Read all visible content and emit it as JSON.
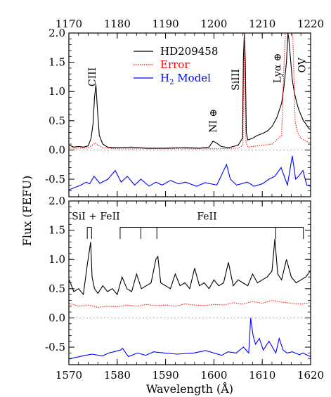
{
  "chart_data": [
    {
      "type": "line",
      "panel": "top",
      "xlabel_top_ticks": [
        "1170",
        "1180",
        "1190",
        "1200",
        "1210",
        "1220"
      ],
      "xlim": [
        1170,
        1220
      ],
      "ylim": [
        -0.8,
        2.0
      ],
      "yticks": [
        {
          "value": 0.0,
          "label": "0.0"
        },
        {
          "value": 0.5,
          "label": "0.5"
        },
        {
          "value": 1.0,
          "label": "1.0"
        },
        {
          "value": 1.5,
          "label": "1.5"
        },
        {
          "value": 2.0,
          "label": "2.0"
        },
        {
          "value": -0.5,
          "label": "-0.5"
        }
      ],
      "legend": {
        "placement": "top-center",
        "entries": [
          {
            "label": "HD209458",
            "color": "#000000",
            "style": "solid"
          },
          {
            "label": "Error",
            "color": "#ff0000",
            "style": "dotted"
          },
          {
            "label_main": "H",
            "label_sub": "2",
            "label_rest": " Model",
            "color": "#0000ff",
            "style": "solid"
          }
        ]
      },
      "annotations": [
        {
          "text": "CIII",
          "x": 1175.5,
          "y": 1.25,
          "rotate": true
        },
        {
          "text": "NI ⊕",
          "x": 1200.5,
          "y": 0.5,
          "rotate": true
        },
        {
          "text": "SiIII",
          "x": 1205.2,
          "y": 1.2,
          "rotate": true
        },
        {
          "text": "Lyα ⊕",
          "x": 1213.8,
          "y": 1.4,
          "rotate": true
        },
        {
          "text": "OV",
          "x": 1218.9,
          "y": 1.45,
          "rotate": true
        }
      ],
      "series": [
        {
          "name": "HD209458",
          "color": "#000000",
          "x": [
            1170.1,
            1171,
            1172,
            1173,
            1174,
            1174.6,
            1175,
            1175.3,
            1175.6,
            1175.9,
            1176.3,
            1177,
            1178,
            1180,
            1183,
            1186,
            1190,
            1194,
            1197,
            1199,
            1199.8,
            1200.5,
            1201.5,
            1203,
            1205,
            1205.9,
            1206.1,
            1206.3,
            1206.5,
            1206.7,
            1207,
            1208,
            1209,
            1210,
            1211,
            1212,
            1213,
            1214,
            1214.5,
            1215,
            1215.3,
            1215.5,
            1215.8,
            1216.2,
            1216.6,
            1217,
            1217.5,
            1218,
            1218.5,
            1219,
            1219.5,
            1219.9
          ],
          "y": [
            0.08,
            0.05,
            0.06,
            0.05,
            0.07,
            0.2,
            0.45,
            0.9,
            1.12,
            0.7,
            0.25,
            0.1,
            0.05,
            0.04,
            0.05,
            0.03,
            0.03,
            0.04,
            0.03,
            0.05,
            0.15,
            0.12,
            0.06,
            0.04,
            0.08,
            0.2,
            1.6,
            2.0,
            1.5,
            0.3,
            0.17,
            0.2,
            0.25,
            0.28,
            0.32,
            0.4,
            0.55,
            0.8,
            1.1,
            1.5,
            2.0,
            1.9,
            1.6,
            1.2,
            1.0,
            0.85,
            0.7,
            0.6,
            0.5,
            0.45,
            0.38,
            0.35
          ]
        },
        {
          "name": "Error",
          "color": "#ff0000",
          "x": [
            1170.1,
            1172,
            1174,
            1175,
            1175.5,
            1176,
            1177,
            1180,
            1190,
            1200,
            1205,
            1206,
            1206.3,
            1206.6,
            1207,
            1210,
            1212,
            1214,
            1214.5,
            1214.8,
            1215.5,
            1216.3,
            1216.8,
            1217.3,
            1218,
            1219,
            1219.9
          ],
          "y": [
            0.03,
            0.03,
            0.04,
            0.09,
            0.12,
            0.08,
            0.04,
            0.02,
            0.02,
            0.02,
            0.03,
            0.08,
            2.0,
            0.15,
            0.05,
            0.08,
            0.1,
            0.25,
            1.5,
            2.0,
            2.0,
            2.0,
            0.5,
            0.3,
            0.2,
            0.15,
            0.12
          ]
        },
        {
          "name": "H2 Model",
          "color": "#0000ff",
          "x": [
            1170.1,
            1172.5,
            1173.6,
            1174.3,
            1175.2,
            1176.4,
            1178.1,
            1179.6,
            1180.8,
            1182.1,
            1183.6,
            1184.9,
            1186.6,
            1188.0,
            1189.3,
            1191.0,
            1192.7,
            1194.1,
            1196.4,
            1198.2,
            1200.6,
            1202.6,
            1203.4,
            1204.7,
            1206.9,
            1208.3,
            1210.0,
            1211.4,
            1212.6,
            1213.9,
            1215.2,
            1216.2,
            1216.9,
            1217.5,
            1218.4,
            1219.2,
            1219.9
          ],
          "y": [
            -0.68,
            -0.6,
            -0.55,
            -0.58,
            -0.45,
            -0.57,
            -0.5,
            -0.35,
            -0.55,
            -0.45,
            -0.6,
            -0.5,
            -0.62,
            -0.55,
            -0.6,
            -0.52,
            -0.58,
            -0.55,
            -0.62,
            -0.56,
            -0.6,
            -0.25,
            -0.5,
            -0.6,
            -0.55,
            -0.62,
            -0.58,
            -0.5,
            -0.45,
            -0.3,
            -0.6,
            -0.1,
            -0.5,
            -0.45,
            -0.35,
            -0.6,
            -0.62
          ]
        }
      ]
    },
    {
      "type": "line",
      "panel": "bottom",
      "xlabel": "Wavelength (Å)",
      "xticks": [
        "1570",
        "1580",
        "1590",
        "1600",
        "1610",
        "1620"
      ],
      "xlim": [
        1570,
        1620
      ],
      "ylim": [
        -0.8,
        2.0
      ],
      "yticks": [
        {
          "value": 0.0,
          "label": "0.0"
        },
        {
          "value": 0.5,
          "label": "0.5"
        },
        {
          "value": 1.0,
          "label": "1.0"
        },
        {
          "value": 1.5,
          "label": "1.5"
        },
        {
          "value": 2.0,
          "label": "2.0"
        },
        {
          "value": -0.5,
          "label": "-0.5"
        }
      ],
      "annotations": [
        {
          "text": "SiI + FeII",
          "x": 1570.6,
          "y": 1.68
        },
        {
          "text": "FeII",
          "x": 1596.5,
          "y": 1.68
        }
      ],
      "line_markers": [
        {
          "group": "SiI + FeII",
          "x": [
            1573.8,
            1574.7
          ],
          "y_top": 1.55,
          "y_bottom": 1.35
        },
        {
          "group": "FeII",
          "x": [
            1580.6,
            1584.9,
            1588.2,
            1612.8,
            1618.5
          ],
          "y_top": 1.55,
          "y_bottom": 1.35
        }
      ],
      "series": [
        {
          "name": "HD209458",
          "color": "#000000",
          "x": [
            1570.1,
            1571,
            1572,
            1573,
            1573.8,
            1574.5,
            1574.8,
            1575.3,
            1576,
            1577,
            1578,
            1579,
            1580,
            1581,
            1582,
            1583,
            1584,
            1585,
            1586,
            1587,
            1588,
            1588.4,
            1589,
            1590,
            1591,
            1592,
            1593,
            1594,
            1595,
            1596,
            1597,
            1598,
            1599,
            1600,
            1601,
            1602,
            1603,
            1604,
            1605,
            1606,
            1607,
            1608,
            1609,
            1610,
            1611,
            1612,
            1612.6,
            1613.2,
            1614,
            1615,
            1616,
            1617,
            1618,
            1619,
            1619.9
          ],
          "y": [
            0.65,
            0.45,
            0.5,
            0.4,
            0.9,
            1.3,
            0.7,
            0.5,
            0.42,
            0.55,
            0.45,
            0.5,
            0.4,
            0.7,
            0.5,
            0.45,
            0.75,
            0.5,
            0.55,
            0.6,
            1.0,
            1.05,
            0.6,
            0.55,
            0.5,
            0.75,
            0.55,
            0.6,
            0.5,
            0.85,
            0.55,
            0.6,
            0.5,
            0.65,
            0.55,
            0.6,
            0.95,
            0.55,
            0.65,
            0.6,
            0.55,
            0.75,
            0.6,
            0.65,
            0.7,
            0.8,
            1.35,
            0.75,
            0.65,
            1.0,
            0.7,
            0.6,
            0.65,
            0.7,
            0.8
          ]
        },
        {
          "name": "Error",
          "color": "#ff0000",
          "x": [
            1570.1,
            1572,
            1574,
            1576,
            1578,
            1580,
            1582,
            1584,
            1586,
            1588,
            1590,
            1592,
            1594,
            1596,
            1598,
            1600,
            1602,
            1604,
            1606,
            1608,
            1610,
            1612,
            1614,
            1616,
            1618,
            1619.9
          ],
          "y": [
            0.25,
            0.2,
            0.22,
            0.18,
            0.2,
            0.19,
            0.22,
            0.2,
            0.23,
            0.21,
            0.22,
            0.2,
            0.24,
            0.22,
            0.21,
            0.23,
            0.22,
            0.26,
            0.24,
            0.28,
            0.25,
            0.3,
            0.27,
            0.25,
            0.24,
            0.26
          ]
        },
        {
          "name": "H2 Model",
          "color": "#0000ff",
          "x": [
            1570.1,
            1573.4,
            1574.8,
            1576.9,
            1578.3,
            1580.7,
            1581.1,
            1582.3,
            1584.2,
            1585.9,
            1587.5,
            1589.8,
            1592.4,
            1595.8,
            1598.3,
            1601.6,
            1602.9,
            1604.6,
            1606.1,
            1607.2,
            1607.6,
            1608.1,
            1608.6,
            1609.4,
            1610.2,
            1611.4,
            1612.1,
            1612.8,
            1613.5,
            1614.3,
            1615.1,
            1616.2,
            1617.7,
            1618.4,
            1619.9
          ],
          "y": [
            -0.7,
            -0.64,
            -0.62,
            -0.65,
            -0.6,
            -0.55,
            -0.52,
            -0.66,
            -0.6,
            -0.64,
            -0.58,
            -0.6,
            -0.62,
            -0.6,
            -0.56,
            -0.64,
            -0.58,
            -0.6,
            -0.5,
            -0.6,
            0.0,
            -0.3,
            -0.45,
            -0.35,
            -0.55,
            -0.4,
            -0.5,
            -0.6,
            -0.35,
            -0.55,
            -0.6,
            -0.58,
            -0.63,
            -0.6,
            -0.66
          ]
        }
      ]
    }
  ],
  "ylabel": "Flux (FEFU)"
}
